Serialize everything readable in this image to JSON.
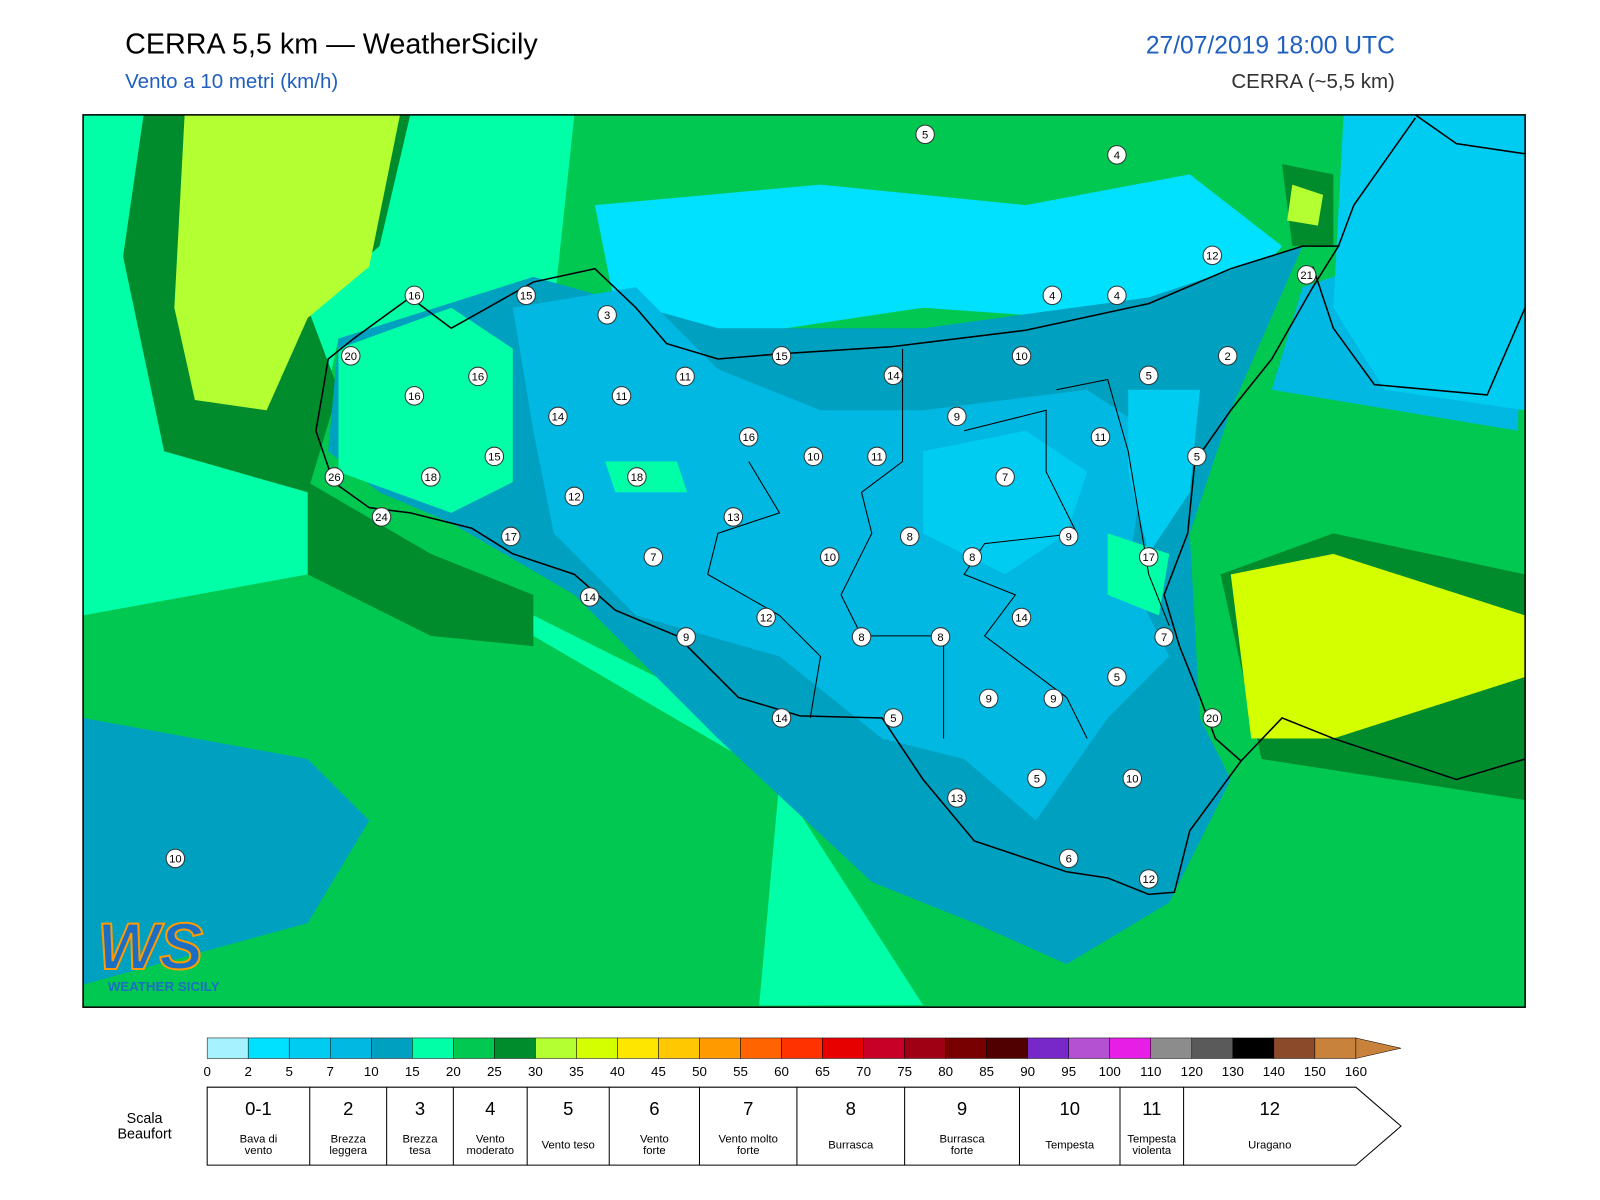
{
  "header": {
    "title": "CERRA 5,5 km — WeatherSicily",
    "subtitle": "Vento a 10 metri (km/h)",
    "date": "27/07/2019 18:00 UTC",
    "model": "CERRA (~5,5 km)"
  },
  "stations": [
    5,
    4,
    12,
    21,
    4,
    4,
    16,
    15,
    3,
    20,
    15,
    10,
    2,
    11,
    14,
    5,
    16,
    16,
    11,
    14,
    9,
    16,
    11,
    15,
    10,
    11,
    5,
    26,
    18,
    18,
    7,
    12,
    13,
    24,
    8,
    9,
    17,
    7,
    10,
    8,
    17,
    14,
    14,
    12,
    9,
    8,
    8,
    7,
    5,
    9,
    9,
    14,
    5,
    20,
    5,
    10,
    13,
    6,
    12,
    10
  ],
  "colorbar": {
    "ticks": [
      0,
      2,
      5,
      7,
      10,
      15,
      20,
      25,
      30,
      35,
      40,
      45,
      50,
      55,
      60,
      65,
      70,
      75,
      80,
      85,
      90,
      95,
      100,
      110,
      120,
      130,
      140,
      150,
      160
    ],
    "colors": [
      "#a6f2ff",
      "#00e0ff",
      "#00ccf2",
      "#00b8e2",
      "#00a0c0",
      "#00ffa6",
      "#00c850",
      "#008c2d",
      "#b4ff32",
      "#d4ff00",
      "#ffe600",
      "#ffc800",
      "#ff9a00",
      "#ff6400",
      "#ff3200",
      "#e60000",
      "#c80028",
      "#a00014",
      "#780000",
      "#500000",
      "#7828c8",
      "#b450d2",
      "#e61ee6",
      "#8c8c8c",
      "#5a5a5a",
      "#000000",
      "#8b4a2a",
      "#c8823c"
    ]
  },
  "beaufort": {
    "title": [
      "Scala",
      "Beaufort"
    ],
    "levels": [
      {
        "force": "0-1",
        "label": [
          "Bava di",
          "vento"
        ]
      },
      {
        "force": "2",
        "label": [
          "Brezza",
          "leggera"
        ]
      },
      {
        "force": "3",
        "label": [
          "Brezza",
          "tesa"
        ]
      },
      {
        "force": "4",
        "label": [
          "Vento",
          "moderato"
        ]
      },
      {
        "force": "5",
        "label": [
          "Vento teso"
        ]
      },
      {
        "force": "6",
        "label": [
          "Vento",
          "forte"
        ]
      },
      {
        "force": "7",
        "label": [
          "Vento molto",
          "forte"
        ]
      },
      {
        "force": "8",
        "label": [
          "Burrasca"
        ]
      },
      {
        "force": "9",
        "label": [
          "Burrasca",
          "forte"
        ]
      },
      {
        "force": "10",
        "label": [
          "Tempesta"
        ]
      },
      {
        "force": "11",
        "label": [
          "Tempesta",
          "violenta"
        ]
      },
      {
        "force": "12",
        "label": [
          "Uragano"
        ]
      }
    ]
  },
  "logo": {
    "mark": "WS",
    "text": "WEATHER SICILY"
  }
}
